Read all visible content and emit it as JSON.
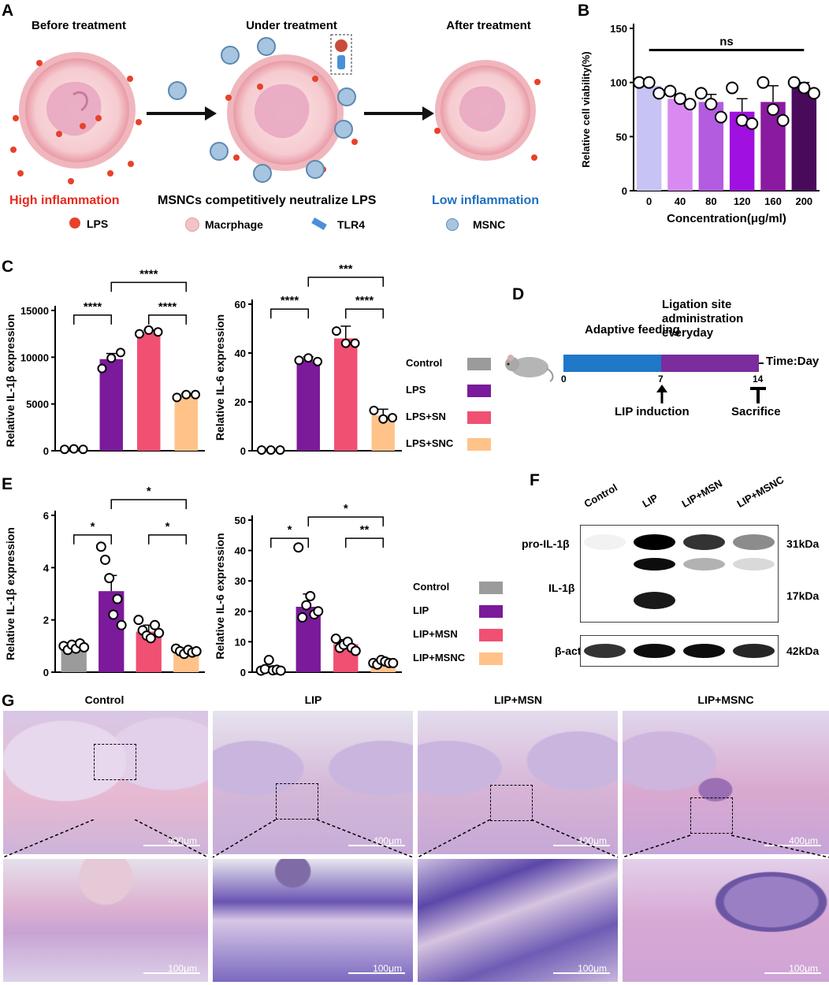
{
  "panels": {
    "A": "A",
    "B": "B",
    "C": "C",
    "D": "D",
    "E": "E",
    "F": "F",
    "G": "G"
  },
  "panelA": {
    "stages": [
      "Before treatment",
      "Under treatment",
      "After treatment"
    ],
    "captions": {
      "left": "High inflammation",
      "middle": "MSNCs competitively neutralize LPS",
      "right": "Low inflammation"
    },
    "legend": [
      "LPS",
      "Macrphage",
      "TLR4",
      "MSNC"
    ],
    "colors": {
      "lps": "#e8412a",
      "cell": "#f3c3c9",
      "msnc": "#7aa6c6"
    }
  },
  "panelD": {
    "phase1": "Adaptive feeding",
    "phase2_line1": "Ligation site",
    "phase2_line2": "administration",
    "phase2_line3": "everyday",
    "axis_label": "Time:Day",
    "ticks": [
      "0",
      "7",
      "14"
    ],
    "event1": "LIP induction",
    "event2": "Sacrifice",
    "colors": {
      "phase1": "#1f78c8",
      "phase2": "#7b2d9e"
    }
  },
  "legendC": [
    {
      "label": "Control",
      "color": "#9b9b9b"
    },
    {
      "label": "LPS",
      "color": "#7b1a9a"
    },
    {
      "label": "LPS+SN",
      "color": "#f05072"
    },
    {
      "label": "LPS+SNC",
      "color": "#ffc38a"
    }
  ],
  "legendE": [
    {
      "label": "Control",
      "color": "#9b9b9b"
    },
    {
      "label": "LIP",
      "color": "#7b1a9a"
    },
    {
      "label": "LIP+MSN",
      "color": "#f05072"
    },
    {
      "label": "LIP+MSNC",
      "color": "#ffc38a"
    }
  ],
  "panelF": {
    "lanes": [
      "Control",
      "LIP",
      "LIP+MSN",
      "LIP+MSNC"
    ],
    "rows": [
      "pro-IL-1β",
      "IL-1β",
      "β-actin"
    ],
    "sizes": [
      "31kDa",
      "17kDa",
      "42kDa"
    ],
    "band_intensity": {
      "pro_il1b": [
        0.05,
        1.0,
        0.8,
        0.45
      ],
      "lower_pro": [
        0,
        0.95,
        0.3,
        0.15
      ],
      "il1b": [
        0,
        0.9,
        0,
        0
      ],
      "actin": [
        0.8,
        0.95,
        0.95,
        0.85
      ]
    }
  },
  "panelG": {
    "titles": [
      "Control",
      "LIP",
      "LIP+MSN",
      "LIP+MSNC"
    ],
    "scale_top": "400μm",
    "scale_bottom": "100μm"
  },
  "chart_data": [
    {
      "id": "B",
      "type": "bar",
      "xlabel": "Concentration(μg/ml)",
      "ylabel": "Relative cell viability(%)",
      "ylim": [
        0,
        150
      ],
      "yticks": [
        0,
        50,
        100,
        150
      ],
      "categories": [
        "0",
        "40",
        "80",
        "120",
        "160",
        "200"
      ],
      "values": [
        97,
        85,
        82,
        73,
        82,
        95
      ],
      "errors": [
        4,
        4,
        7,
        12,
        15,
        5
      ],
      "points": [
        [
          100,
          100,
          90
        ],
        [
          92,
          85,
          80
        ],
        [
          90,
          80,
          68
        ],
        [
          95,
          65,
          62
        ],
        [
          100,
          75,
          65
        ],
        [
          100,
          95,
          90
        ]
      ],
      "colors": [
        "#c8c3f5",
        "#d98af0",
        "#b35ce0",
        "#a010e0",
        "#8a1aa0",
        "#4a0a5c"
      ],
      "annotations": [
        {
          "text": "ns",
          "from": 0,
          "to": 5,
          "y": 130
        }
      ]
    },
    {
      "id": "C1",
      "type": "bar",
      "xlabel": "",
      "ylabel": "Relative IL-1β expression",
      "ylim": [
        0,
        15000
      ],
      "yticks": [
        0,
        5000,
        10000,
        15000
      ],
      "categories": [
        "Control",
        "LPS",
        "LPS+SN",
        "LPS+SNC"
      ],
      "values": [
        200,
        9800,
        12600,
        5900
      ],
      "errors": [
        30,
        600,
        300,
        200
      ],
      "points": [
        [
          150,
          200,
          150
        ],
        [
          8800,
          9900,
          10500
        ],
        [
          12500,
          12900,
          12700
        ],
        [
          5700,
          6000,
          6000
        ]
      ],
      "colors": [
        "#9b9b9b",
        "#7b1a9a",
        "#f05072",
        "#ffc38a"
      ],
      "annotations": [
        {
          "text": "****",
          "from": 0,
          "to": 1,
          "y": 14500
        },
        {
          "text": "****",
          "from": 2,
          "to": 3,
          "y": 14500
        },
        {
          "text": "****",
          "from": 1,
          "to": 3,
          "y": 18000
        }
      ]
    },
    {
      "id": "C2",
      "type": "bar",
      "xlabel": "",
      "ylabel": "Relative IL-6 expression",
      "ylim": [
        0,
        60
      ],
      "yticks": [
        0,
        20,
        40,
        60
      ],
      "categories": [
        "Control",
        "LPS",
        "LPS+SN",
        "LPS+SNC"
      ],
      "values": [
        0.3,
        37,
        46,
        14.5
      ],
      "errors": [
        0.1,
        1.5,
        5,
        2.5
      ],
      "points": [
        [
          0.3,
          0.3,
          0.3
        ],
        [
          37,
          38,
          36.5
        ],
        [
          49,
          44,
          44
        ],
        [
          16.5,
          13,
          13.5
        ]
      ],
      "colors": [
        "#9b9b9b",
        "#7b1a9a",
        "#f05072",
        "#ffc38a"
      ],
      "annotations": [
        {
          "text": "****",
          "from": 0,
          "to": 1,
          "y": 58
        },
        {
          "text": "****",
          "from": 2,
          "to": 3,
          "y": 58
        },
        {
          "text": "***",
          "from": 1,
          "to": 3,
          "y": 71
        }
      ]
    },
    {
      "id": "E1",
      "type": "bar",
      "xlabel": "",
      "ylabel": "Relative IL-1β  expression",
      "ylim": [
        0,
        6
      ],
      "yticks": [
        0,
        2,
        4,
        6
      ],
      "categories": [
        "Control",
        "LIP",
        "LIP+MSN",
        "LIP+MSNC"
      ],
      "values": [
        0.95,
        3.1,
        1.55,
        0.8
      ],
      "errors": [
        0.08,
        0.6,
        0.25,
        0.07
      ],
      "points": [
        [
          1.0,
          0.85,
          1.05,
          0.9,
          1.1,
          0.95
        ],
        [
          4.8,
          4.3,
          3.6,
          2.2,
          2.8,
          1.8
        ],
        [
          2.0,
          1.6,
          1.4,
          1.3,
          1.8,
          1.5
        ],
        [
          0.9,
          0.8,
          0.7,
          0.85,
          0.75,
          0.8
        ]
      ],
      "colors": [
        "#9b9b9b",
        "#7b1a9a",
        "#f05072",
        "#ffc38a"
      ],
      "annotations": [
        {
          "text": "*",
          "from": 0,
          "to": 1,
          "y": 5.25
        },
        {
          "text": "*",
          "from": 2,
          "to": 3,
          "y": 5.25
        },
        {
          "text": "*",
          "from": 1,
          "to": 3,
          "y": 6.6
        }
      ]
    },
    {
      "id": "E2",
      "type": "bar",
      "xlabel": "",
      "ylabel": "Relative IL-6 expression",
      "ylim": [
        0,
        50
      ],
      "yticks": [
        0,
        10,
        20,
        30,
        40,
        50
      ],
      "categories": [
        "Control",
        "LIP",
        "LIP+MSN",
        "LIP+MSNC"
      ],
      "values": [
        1.2,
        21.5,
        9.2,
        3.3
      ],
      "errors": [
        0.8,
        4.2,
        1.5,
        0.5
      ],
      "points": [
        [
          0.5,
          1.0,
          4.0,
          0.6,
          0.8,
          0.5
        ],
        [
          41,
          18,
          22,
          25,
          19,
          20
        ],
        [
          11,
          8,
          9,
          10,
          8,
          7
        ],
        [
          3,
          2.5,
          4,
          3.5,
          3,
          3
        ]
      ],
      "colors": [
        "#9b9b9b",
        "#7b1a9a",
        "#f05072",
        "#ffc38a"
      ],
      "annotations": [
        {
          "text": "*",
          "from": 0,
          "to": 1,
          "y": 44
        },
        {
          "text": "**",
          "from": 2,
          "to": 3,
          "y": 44
        },
        {
          "text": "*",
          "from": 1,
          "to": 3,
          "y": 51
        }
      ]
    }
  ]
}
